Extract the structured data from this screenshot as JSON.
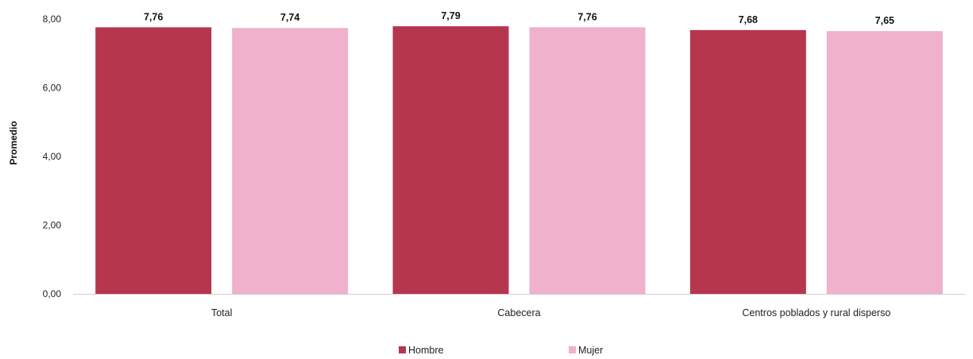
{
  "chart_data": {
    "type": "bar",
    "categories": [
      "Total",
      "Cabecera",
      "Centros poblados y rural disperso"
    ],
    "series": [
      {
        "name": "Hombre",
        "values": [
          7.76,
          7.79,
          7.68
        ],
        "labels": [
          "7,76",
          "7,79",
          "7,68"
        ],
        "color": "#b5364e"
      },
      {
        "name": "Mujer",
        "values": [
          7.74,
          7.76,
          7.65
        ],
        "labels": [
          "7,74",
          "7,76",
          "7,65"
        ],
        "color": "#efb1cb"
      }
    ],
    "ylabel": "Promedio",
    "ylim": [
      0,
      8
    ],
    "yticks": [
      0,
      2,
      4,
      6,
      8
    ],
    "ytick_labels": [
      "0,00",
      "2,00",
      "4,00",
      "6,00",
      "8,00"
    ],
    "grid": false,
    "legend": "bottom"
  }
}
